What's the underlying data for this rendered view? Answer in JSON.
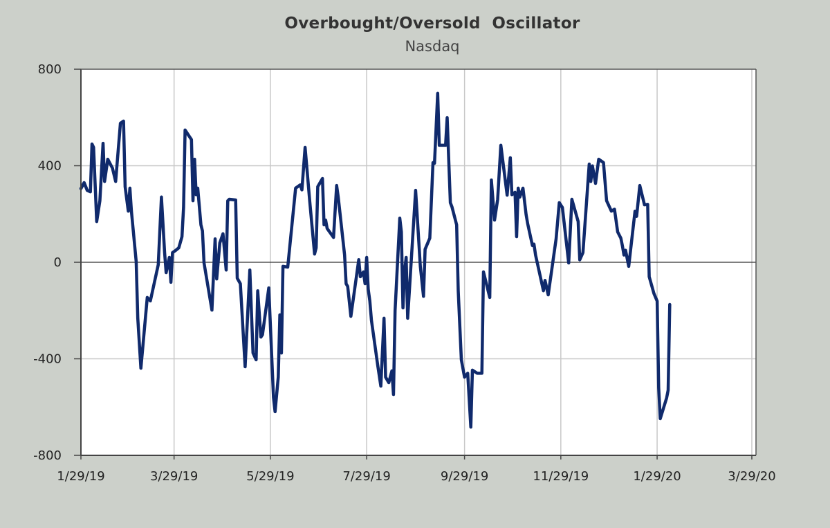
{
  "chart_data": {
    "type": "line",
    "title": "Overbought/Oversold  Oscillator",
    "subtitle": "Nasdaq",
    "xlabel": "",
    "ylabel": "",
    "x_unit": "days since 1/29/19",
    "x_start_date": "1/29/19",
    "xlim_days": [
      0,
      425
    ],
    "ylim": [
      -800,
      800
    ],
    "yticks": [
      800,
      400,
      0,
      -400,
      -800
    ],
    "ytick_labels": [
      "800",
      "400",
      "0",
      "-400",
      "-800"
    ],
    "xticks_days": [
      0,
      59,
      120,
      181,
      243,
      304,
      365,
      425
    ],
    "xtick_labels": [
      "1/29/19",
      "3/29/19",
      "5/29/19",
      "7/29/19",
      "9/29/19",
      "11/29/19",
      "1/29/20",
      "3/29/20"
    ],
    "grid": true,
    "legend": "none",
    "line_color": "#102a6c",
    "series": [
      {
        "name": "Nasdaq Overbought/Oversold Oscillator",
        "x": [
          0,
          2,
          4,
          6,
          7,
          8,
          10,
          12,
          14,
          15,
          17,
          20,
          22,
          25,
          27,
          28,
          30,
          31,
          32,
          35,
          36,
          38,
          42,
          44,
          49,
          51,
          53,
          54,
          56,
          57,
          58,
          60,
          62,
          64,
          65,
          66,
          68,
          70,
          71,
          72,
          73,
          74,
          76,
          77,
          78,
          83,
          85,
          86,
          88,
          90,
          92,
          93,
          94,
          98,
          99,
          101,
          104,
          107,
          109,
          111,
          112,
          114,
          115,
          119,
          122,
          123,
          125,
          126,
          127,
          128,
          131,
          133,
          136,
          139,
          140,
          142,
          145,
          148,
          149,
          150,
          153,
          154,
          155,
          156,
          160,
          162,
          163,
          167,
          168,
          169,
          171,
          176,
          177,
          179,
          180,
          181,
          182,
          183,
          184,
          188,
          190,
          192,
          193,
          195,
          197,
          198,
          199,
          202,
          203,
          204,
          205,
          206,
          207,
          212,
          215,
          217,
          218,
          221,
          223,
          224,
          226,
          227,
          231,
          232,
          234,
          235,
          238,
          239,
          241,
          243,
          245,
          247,
          248,
          251,
          254,
          255,
          259,
          260,
          262,
          264,
          266,
          270,
          272,
          273,
          275,
          276,
          277,
          278,
          280,
          282,
          283,
          286,
          287,
          288,
          293,
          294,
          296,
          301,
          303,
          305,
          309,
          311,
          315,
          316,
          318,
          322,
          323,
          324,
          326,
          328,
          331,
          333,
          336,
          338,
          340,
          342,
          343,
          344,
          345,
          347,
          351,
          352,
          354,
          357,
          359,
          360,
          363,
          365,
          366,
          367,
          371,
          372,
          373
        ],
        "values": [
          305,
          330,
          298,
          292,
          490,
          476,
          169,
          255,
          493,
          335,
          427,
          390,
          335,
          576,
          585,
          313,
          212,
          307,
          212,
          3,
          -232,
          -439,
          -146,
          -160,
          -10,
          270,
          40,
          -43,
          20,
          -83,
          40,
          49,
          60,
          106,
          227,
          548,
          528,
          508,
          255,
          427,
          280,
          307,
          155,
          130,
          -3,
          -198,
          97,
          -69,
          80,
          118,
          -32,
          255,
          261,
          258,
          -66,
          -89,
          -433,
          -32,
          -376,
          -404,
          -118,
          -310,
          -300,
          -106,
          -560,
          -619,
          -476,
          -218,
          -376,
          -17,
          -20,
          112,
          307,
          321,
          300,
          476,
          250,
          34,
          60,
          313,
          347,
          155,
          175,
          140,
          103,
          318,
          270,
          30,
          -89,
          -100,
          -224,
          11,
          -60,
          -40,
          -89,
          20,
          -112,
          -161,
          -240,
          -427,
          -513,
          -232,
          -476,
          -499,
          -450,
          -548,
          -200,
          183,
          126,
          -189,
          -40,
          20,
          -232,
          298,
          -17,
          -141,
          54,
          100,
          413,
          410,
          700,
          485,
          485,
          599,
          247,
          230,
          155,
          -118,
          -404,
          -476,
          -460,
          -683,
          -447,
          -460,
          -460,
          -40,
          -146,
          341,
          175,
          260,
          485,
          278,
          433,
          280,
          290,
          106,
          307,
          270,
          307,
          198,
          160,
          69,
          75,
          30,
          -118,
          -75,
          -135,
          97,
          247,
          227,
          -3,
          261,
          169,
          10,
          40,
          407,
          335,
          399,
          327,
          427,
          413,
          255,
          212,
          220,
          126,
          100,
          69,
          30,
          50,
          -17,
          212,
          190,
          318,
          238,
          240,
          -60,
          -130,
          -161,
          -520,
          -648,
          -562,
          -530,
          -175
        ]
      }
    ]
  }
}
